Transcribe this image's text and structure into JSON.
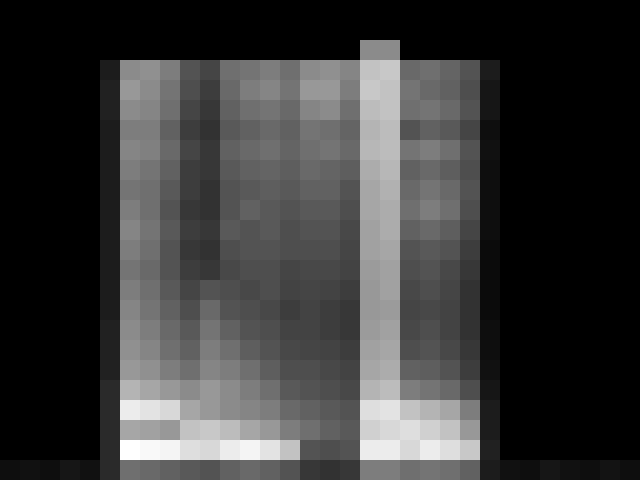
{
  "chart_data": {
    "type": "heatmap",
    "color": "gray",
    "tick_labels": false,
    "cells": [
      [
        0,
        0,
        0,
        0,
        0,
        0,
        0,
        0,
        0,
        0,
        0,
        0,
        0,
        0,
        0,
        0,
        0,
        0,
        0,
        0,
        0,
        0,
        0,
        0,
        0,
        0,
        0,
        0,
        0,
        0,
        0,
        0
      ],
      [
        0,
        0,
        0,
        0,
        0,
        0,
        0,
        0,
        0,
        0,
        0,
        0,
        0,
        0,
        0,
        0,
        0,
        0,
        0,
        0,
        0,
        0,
        0,
        0,
        0,
        0,
        0,
        0,
        0,
        0,
        0,
        0
      ],
      [
        0,
        0,
        0,
        0,
        0,
        0,
        0,
        0,
        0,
        0,
        0,
        0,
        0,
        0,
        0,
        0,
        0,
        0,
        50,
        50,
        0,
        0,
        0,
        0,
        0,
        0,
        0,
        0,
        0,
        0,
        0,
        0
      ],
      [
        0,
        0,
        0,
        0,
        0,
        10,
        50,
        52,
        45,
        30,
        25,
        40,
        42,
        45,
        40,
        50,
        52,
        48,
        70,
        72,
        38,
        40,
        36,
        30,
        10,
        0,
        0,
        0,
        0,
        0,
        0,
        0
      ],
      [
        0,
        0,
        0,
        0,
        0,
        12,
        55,
        50,
        42,
        28,
        22,
        38,
        45,
        48,
        42,
        55,
        55,
        45,
        72,
        70,
        42,
        38,
        35,
        28,
        8,
        0,
        0,
        0,
        0,
        0,
        0,
        0
      ],
      [
        0,
        0,
        0,
        0,
        0,
        12,
        50,
        48,
        40,
        25,
        20,
        35,
        40,
        42,
        38,
        48,
        50,
        40,
        68,
        70,
        40,
        42,
        38,
        30,
        8,
        0,
        0,
        0,
        0,
        0,
        0,
        0
      ],
      [
        0,
        0,
        0,
        0,
        0,
        10,
        45,
        45,
        35,
        22,
        18,
        32,
        35,
        38,
        35,
        42,
        40,
        36,
        65,
        68,
        30,
        35,
        32,
        25,
        5,
        0,
        0,
        0,
        0,
        0,
        0,
        0
      ],
      [
        0,
        0,
        0,
        0,
        0,
        10,
        48,
        46,
        38,
        25,
        20,
        35,
        38,
        40,
        36,
        40,
        42,
        38,
        66,
        68,
        42,
        45,
        40,
        30,
        6,
        0,
        0,
        0,
        0,
        0,
        0,
        0
      ],
      [
        0,
        0,
        0,
        0,
        0,
        10,
        45,
        42,
        35,
        22,
        20,
        32,
        35,
        36,
        34,
        38,
        36,
        34,
        62,
        66,
        35,
        38,
        34,
        28,
        5,
        0,
        0,
        0,
        0,
        0,
        0,
        0
      ],
      [
        0,
        0,
        0,
        0,
        0,
        10,
        42,
        40,
        32,
        22,
        18,
        30,
        32,
        34,
        32,
        35,
        35,
        30,
        60,
        64,
        38,
        42,
        38,
        30,
        5,
        0,
        0,
        0,
        0,
        0,
        0,
        0
      ],
      [
        0,
        0,
        0,
        0,
        0,
        10,
        45,
        40,
        30,
        20,
        18,
        30,
        35,
        32,
        30,
        32,
        32,
        28,
        60,
        62,
        40,
        45,
        40,
        28,
        5,
        0,
        0,
        0,
        0,
        0,
        0,
        0
      ],
      [
        0,
        0,
        0,
        0,
        0,
        10,
        48,
        42,
        32,
        22,
        20,
        32,
        30,
        32,
        28,
        30,
        30,
        26,
        58,
        62,
        35,
        38,
        34,
        25,
        5,
        0,
        0,
        0,
        0,
        0,
        0,
        0
      ],
      [
        0,
        0,
        0,
        0,
        0,
        10,
        45,
        40,
        30,
        20,
        18,
        28,
        30,
        30,
        28,
        28,
        28,
        25,
        58,
        60,
        30,
        32,
        30,
        22,
        4,
        0,
        0,
        0,
        0,
        0,
        0,
        0
      ],
      [
        0,
        0,
        0,
        0,
        0,
        10,
        42,
        38,
        30,
        22,
        20,
        26,
        28,
        28,
        25,
        26,
        26,
        24,
        56,
        58,
        28,
        30,
        26,
        20,
        4,
        0,
        0,
        0,
        0,
        0,
        0,
        0
      ],
      [
        0,
        0,
        0,
        0,
        0,
        10,
        45,
        40,
        32,
        25,
        30,
        28,
        26,
        28,
        24,
        25,
        24,
        22,
        55,
        58,
        26,
        28,
        25,
        18,
        4,
        0,
        0,
        0,
        0,
        0,
        0,
        0
      ],
      [
        0,
        0,
        0,
        0,
        0,
        10,
        48,
        42,
        35,
        28,
        38,
        30,
        28,
        26,
        22,
        24,
        22,
        20,
        55,
        56,
        25,
        26,
        24,
        18,
        4,
        0,
        0,
        0,
        0,
        0,
        0,
        0
      ],
      [
        0,
        0,
        0,
        0,
        0,
        12,
        50,
        45,
        38,
        32,
        42,
        35,
        30,
        28,
        24,
        24,
        22,
        20,
        56,
        58,
        26,
        28,
        24,
        18,
        5,
        0,
        0,
        0,
        0,
        0,
        0,
        0
      ],
      [
        0,
        0,
        0,
        0,
        0,
        12,
        52,
        48,
        40,
        35,
        45,
        40,
        34,
        30,
        26,
        25,
        24,
        22,
        58,
        60,
        28,
        30,
        26,
        20,
        5,
        0,
        0,
        0,
        0,
        0,
        0,
        0
      ],
      [
        0,
        0,
        0,
        0,
        0,
        12,
        55,
        52,
        45,
        40,
        48,
        45,
        40,
        34,
        28,
        28,
        26,
        24,
        60,
        62,
        35,
        34,
        30,
        22,
        6,
        0,
        0,
        0,
        0,
        0,
        0,
        0
      ],
      [
        0,
        0,
        0,
        0,
        0,
        15,
        65,
        60,
        55,
        50,
        55,
        50,
        45,
        40,
        32,
        30,
        28,
        26,
        65,
        68,
        45,
        42,
        38,
        28,
        8,
        0,
        0,
        0,
        0,
        0,
        0,
        0
      ],
      [
        0,
        0,
        0,
        0,
        0,
        15,
        85,
        82,
        78,
        60,
        55,
        50,
        48,
        45,
        38,
        35,
        32,
        30,
        80,
        82,
        70,
        65,
        60,
        45,
        10,
        0,
        0,
        0,
        0,
        0,
        0,
        0
      ],
      [
        0,
        0,
        0,
        0,
        0,
        15,
        60,
        58,
        55,
        70,
        72,
        68,
        60,
        55,
        45,
        40,
        35,
        32,
        75,
        78,
        80,
        75,
        70,
        55,
        10,
        0,
        0,
        0,
        0,
        0,
        0,
        0
      ],
      [
        0,
        0,
        0,
        0,
        0,
        15,
        92,
        90,
        88,
        80,
        78,
        85,
        88,
        82,
        70,
        30,
        28,
        30,
        85,
        85,
        78,
        85,
        80,
        72,
        12,
        0,
        0,
        0,
        0,
        0,
        0,
        0
      ],
      [
        5,
        6,
        5,
        8,
        6,
        15,
        40,
        38,
        35,
        32,
        30,
        35,
        38,
        35,
        30,
        20,
        18,
        20,
        45,
        45,
        40,
        42,
        40,
        35,
        10,
        6,
        5,
        8,
        6,
        5,
        7,
        5
      ]
    ]
  }
}
